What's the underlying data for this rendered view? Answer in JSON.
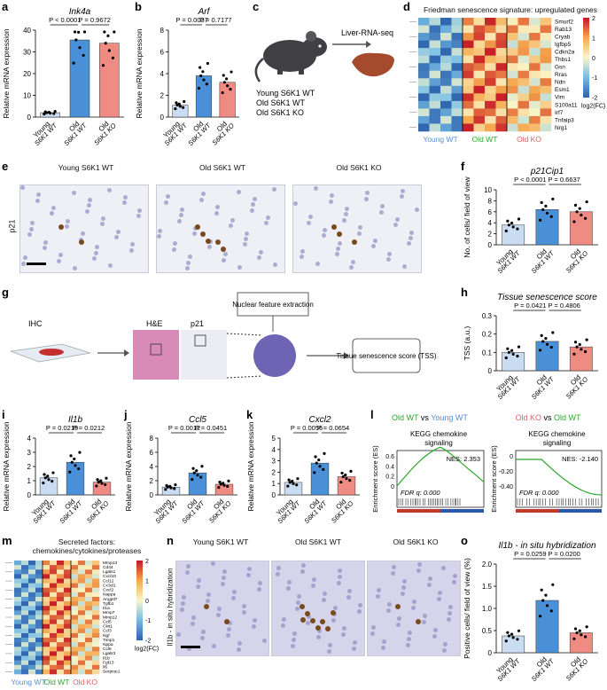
{
  "panels": [
    "a",
    "b",
    "c",
    "d",
    "e",
    "f",
    "g",
    "h",
    "i",
    "j",
    "k",
    "l",
    "m",
    "n",
    "o"
  ],
  "colors": {
    "young": "#c9dcf1",
    "old_wt": "#4a90d9",
    "old_ko": "#f08b84",
    "green": "#2aa82a",
    "blue": "#5b8fd6",
    "red": "#e06060"
  },
  "groups3": [
    "Young",
    "Old",
    "Old"
  ],
  "groups3b": [
    "S6K1 WT",
    "S6K1 WT",
    "S6K1 KO"
  ],
  "charts": {
    "a": {
      "title": "Ink4a",
      "ylabel": "Relative mRNA expression",
      "yticks": [
        "0",
        "10",
        "20",
        "30",
        "40"
      ],
      "ymax": 40,
      "values": [
        2,
        35.5,
        34
      ],
      "p1": "P < 0.0001",
      "p2": "P = 0.9672"
    },
    "b": {
      "title": "Arf",
      "ylabel": "Relative mRNA expression",
      "yticks": [
        "0",
        "2",
        "4",
        "6",
        "8"
      ],
      "ymax": 8,
      "values": [
        1.1,
        3.8,
        3.2
      ],
      "p1": "P = 0.0037",
      "p2": "P = 0.7177"
    },
    "f": {
      "title": "p21Cip1",
      "ylabel": "No. of cells/ field of view",
      "yticks": [
        "0",
        "2",
        "4",
        "6",
        "8",
        "10"
      ],
      "ymax": 10,
      "values": [
        3.6,
        6.4,
        6.0
      ],
      "p1": "P < 0.0001",
      "p2": "P = 0.6637"
    },
    "h": {
      "title": "Tissue senescence score",
      "ylabel": "TSS (a.u.)",
      "yticks": [
        "0",
        "0.1",
        "0.2",
        "0.3"
      ],
      "ymax": 0.3,
      "values": [
        0.1,
        0.16,
        0.13
      ],
      "p1": "P = 0.0421",
      "p2": "P = 0.4806"
    },
    "i": {
      "title": "Il1b",
      "ylabel": "Relative mRNA expression",
      "yticks": [
        "0",
        "1",
        "2",
        "3",
        "4"
      ],
      "ymax": 4,
      "values": [
        1.2,
        2.3,
        0.9
      ],
      "p1": "P = 0.0219",
      "p2": "P = 0.0212"
    },
    "j": {
      "title": "Ccl5",
      "ylabel": "Relative mRNA expression",
      "yticks": [
        "0",
        "2",
        "4",
        "6",
        "8"
      ],
      "ymax": 8,
      "values": [
        1.1,
        3.1,
        1.5
      ],
      "p1": "P = 0.0012",
      "p2": "P = 0.0451"
    },
    "k": {
      "title": "Cxcl2",
      "ylabel": "Relative mRNA expression",
      "yticks": [
        "0",
        "1",
        "2",
        "3",
        "4",
        "5"
      ],
      "ymax": 5,
      "values": [
        1.1,
        2.8,
        1.6
      ],
      "p1": "P = 0.0056",
      "p2": "P = 0.0654"
    },
    "o": {
      "title": "Il1b - in situ hybridization",
      "ylabel": "Positive cells/ field of view (%)",
      "yticks": [
        "0",
        "0.5",
        "1.0",
        "1.5",
        "2.0"
      ],
      "ymax": 2,
      "values": [
        0.38,
        1.18,
        0.45
      ],
      "p1": "P = 0.0259",
      "p2": "P = 0.0200"
    }
  },
  "c": {
    "rnaseq": "Liver-RNA-seq",
    "groups": [
      "Young S6K1 WT",
      "Old S6K1 WT",
      "Old S6K1 KO"
    ]
  },
  "d": {
    "title": "Friedman senescence signature: upregulated genes",
    "genes": [
      "Smurf2",
      "Rab13",
      "Cryab",
      "Igfbp5",
      "Cdkn2a",
      "Thbs1",
      "Gsn",
      "Rras",
      "Ndn",
      "Esm1",
      "Vim",
      "S100a11",
      "Irf7",
      "Tnfaip3",
      "Nrg1"
    ],
    "scale": [
      "2",
      "1",
      "0",
      "-1",
      "-2"
    ],
    "scale_label": "log2(FC)",
    "groups": [
      "Young WT",
      "Old WT",
      "Old KO"
    ]
  },
  "e": {
    "side": "p21",
    "cols": [
      "Young S6K1 WT",
      "Old S6K1 WT",
      "Old S6K1 KO"
    ]
  },
  "g": {
    "ihc": "IHC",
    "he": "H&E",
    "p21": "p21",
    "nuc": "Nuclear feature extraction",
    "tss": "Tissue senescence score (TSS)"
  },
  "l": {
    "left": {
      "a": "Old WT",
      "vs": "vs",
      "b": "Young WT",
      "sub": "KEGG chemokine signaling",
      "nes": "NES: 2.353",
      "fdr": "FDR q: 0.000",
      "ylabel": "Enrichment score (ES)",
      "yticks": [
        "0.6",
        "0.4",
        "0.2",
        "0"
      ]
    },
    "right": {
      "a": "Old KO",
      "vs": "vs",
      "b": "Old WT",
      "sub": "KEGG chemokine signaling",
      "nes": "NES: -2.140",
      "fdr": "FDR q: 0.000",
      "ylabel": "Enrichment score (ES)",
      "yticks": [
        "0",
        "-0.20",
        "-0.40"
      ]
    }
  },
  "m": {
    "title": "Secreted factors: chemokines/cytokines/proteases",
    "genes": [
      "Mmp13",
      "Cd44",
      "Lgals1",
      "Cxcl10",
      "Ccl12",
      "Cx3cl1",
      "Cxcl2",
      "Nappa",
      "Angptl7",
      "Tgfb1",
      "Il1a",
      "Mmp7",
      "Mmp12",
      "Ccl5",
      "Ckit1",
      "Ccl3",
      "Ngf",
      "Timp1",
      "Nppa",
      "Ccl6",
      "Lgals3",
      "Il1b",
      "Fgf13",
      "Il6",
      "Serpine1"
    ],
    "scale": [
      "2",
      "1",
      "0",
      "-1",
      "-2"
    ],
    "scale_label": "log2(FC)",
    "groups": [
      "Young WT",
      "Old WT",
      "Old KO"
    ]
  },
  "n": {
    "side": "Il1b - in situ hybridization",
    "cols": [
      "Young S6K1 WT",
      "Old S6K1 WT",
      "Old S6K1 KO"
    ]
  }
}
